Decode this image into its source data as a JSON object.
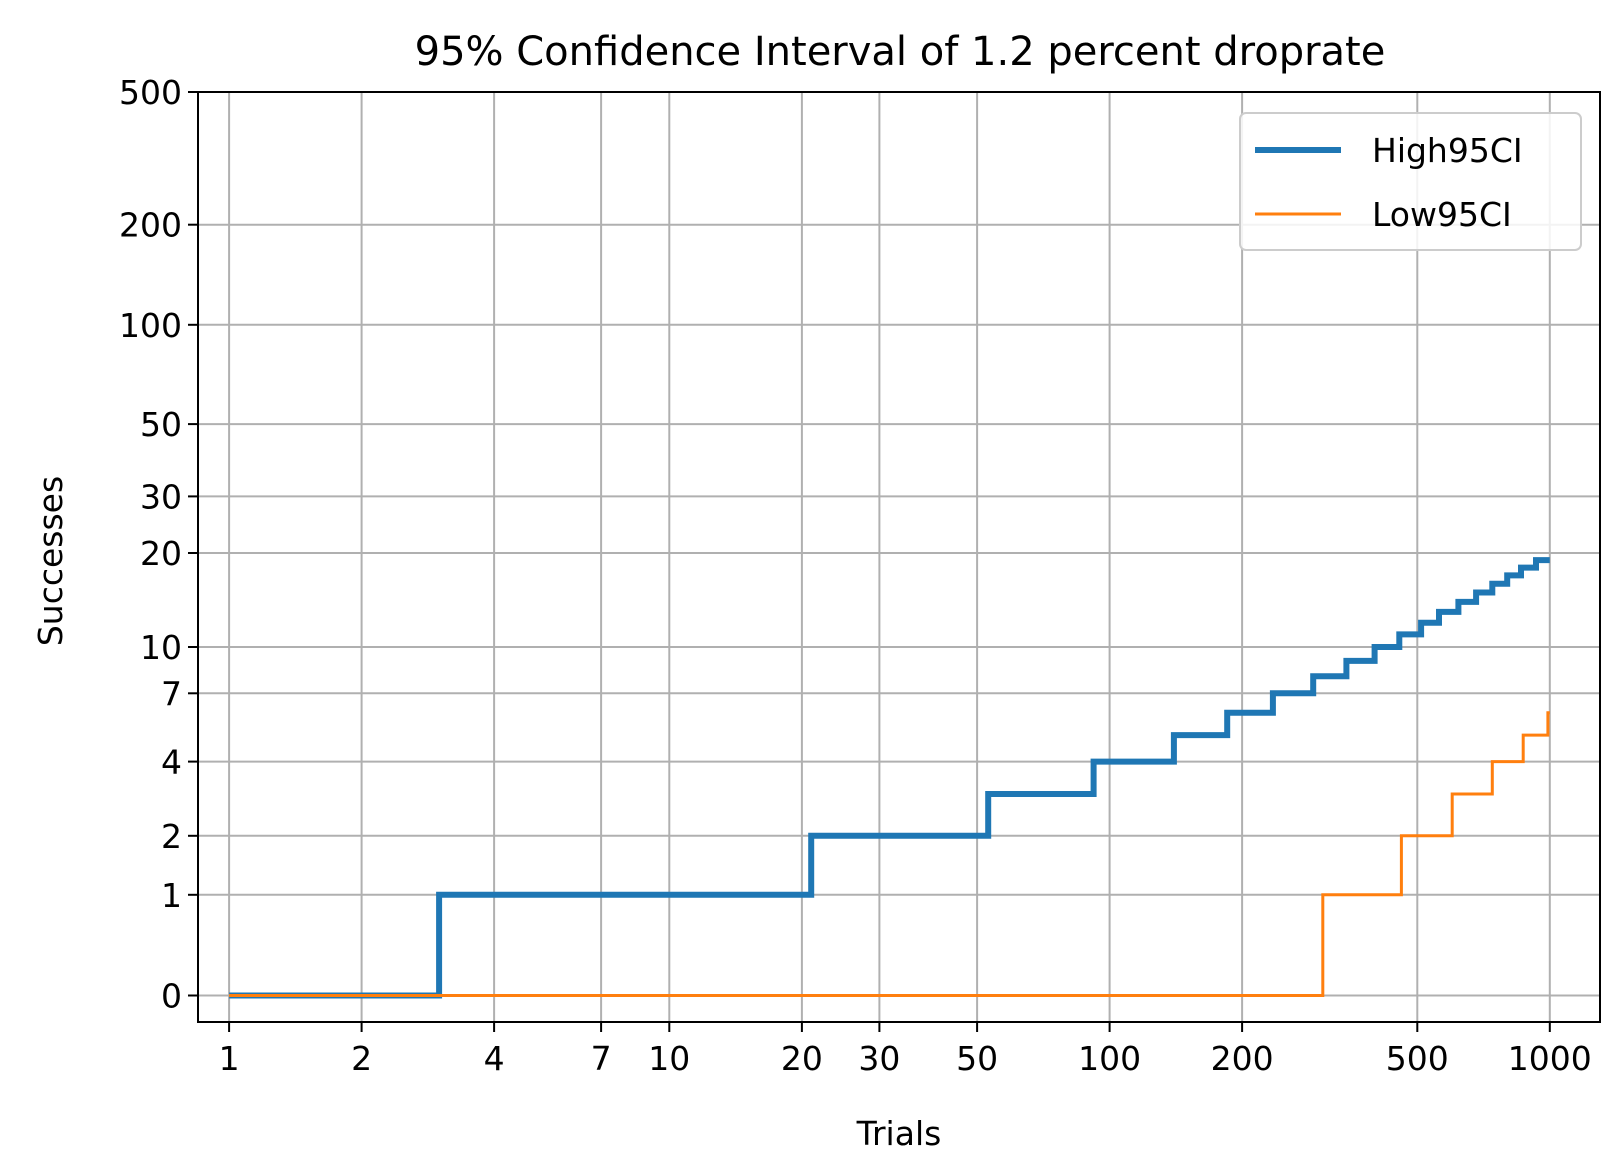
{
  "chart_data": {
    "type": "line",
    "title": "95% Confidence Interval of 1.2 percent droprate",
    "xlabel": "Trials",
    "ylabel": "Successes",
    "xscale": "log",
    "yscale": "symlog",
    "xlim": [
      0.85,
      1300
    ],
    "ylim": [
      -0.2,
      500
    ],
    "grid": true,
    "legend_position": "top-right",
    "x_ticks": [
      {
        "value": 1,
        "label": "1"
      },
      {
        "value": 2,
        "label": "2"
      },
      {
        "value": 4,
        "label": "4"
      },
      {
        "value": 7,
        "label": "7"
      },
      {
        "value": 10,
        "label": "10"
      },
      {
        "value": 20,
        "label": "20"
      },
      {
        "value": 30,
        "label": "30"
      },
      {
        "value": 50,
        "label": "50"
      },
      {
        "value": 100,
        "label": "100"
      },
      {
        "value": 200,
        "label": "200"
      },
      {
        "value": 500,
        "label": "500"
      },
      {
        "value": 1000,
        "label": "1000"
      }
    ],
    "y_ticks": [
      {
        "value": 0,
        "label": "0"
      },
      {
        "value": 1,
        "label": "1"
      },
      {
        "value": 2,
        "label": "2"
      },
      {
        "value": 4,
        "label": "4"
      },
      {
        "value": 7,
        "label": "7"
      },
      {
        "value": 10,
        "label": "10"
      },
      {
        "value": 20,
        "label": "20"
      },
      {
        "value": 30,
        "label": "30"
      },
      {
        "value": 50,
        "label": "50"
      },
      {
        "value": 100,
        "label": "100"
      },
      {
        "value": 200,
        "label": "200"
      },
      {
        "value": 500,
        "label": "500"
      }
    ],
    "series": [
      {
        "name": "High95CI",
        "color": "#1f77b4",
        "style": "thick-step",
        "steps": [
          [
            1,
            0
          ],
          [
            3,
            1
          ],
          [
            21,
            2
          ],
          [
            53,
            3
          ],
          [
            92,
            4
          ],
          [
            140,
            5
          ],
          [
            185,
            6
          ],
          [
            235,
            7
          ],
          [
            290,
            8
          ],
          [
            345,
            9
          ],
          [
            400,
            10
          ],
          [
            455,
            11
          ],
          [
            510,
            12
          ],
          [
            560,
            13
          ],
          [
            620,
            14
          ],
          [
            680,
            15
          ],
          [
            740,
            16
          ],
          [
            800,
            17
          ],
          [
            860,
            18
          ],
          [
            930,
            19
          ],
          [
            1000,
            19
          ]
        ]
      },
      {
        "name": "Low95CI",
        "color": "#ff7f0e",
        "style": "thin-step",
        "steps": [
          [
            1,
            0
          ],
          [
            305,
            1
          ],
          [
            460,
            2
          ],
          [
            600,
            3
          ],
          [
            740,
            4
          ],
          [
            870,
            5
          ],
          [
            990,
            6
          ],
          [
            1000,
            6
          ]
        ]
      }
    ]
  }
}
